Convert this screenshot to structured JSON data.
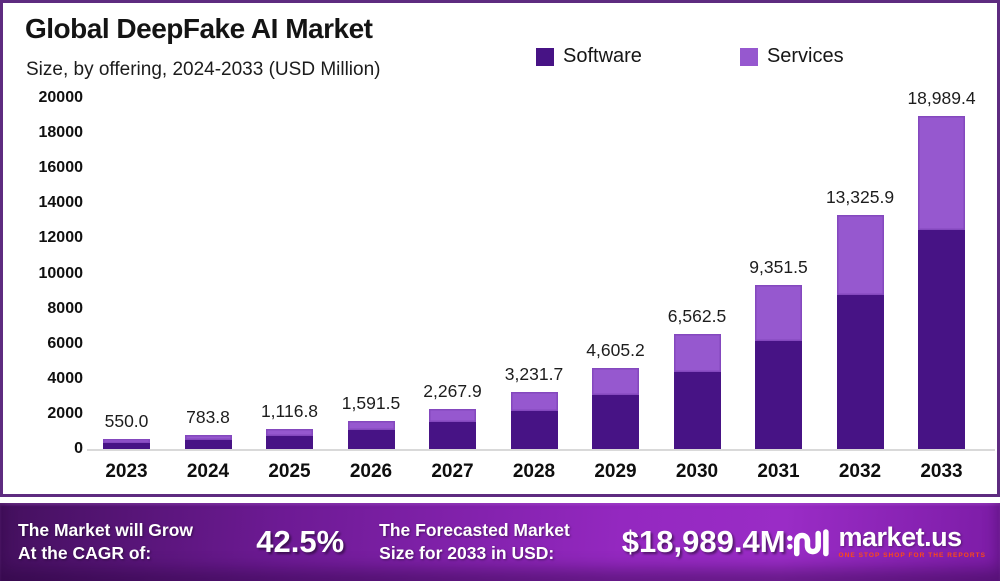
{
  "header": {
    "title": "Global DeepFake AI Market",
    "subtitle": "Size, by offering, 2024-2033 (USD Million)"
  },
  "colors": {
    "frame_border": "#5e2b80",
    "software": "#471385",
    "services": "#9658cf",
    "banner_purple": "#9428c0",
    "baseline_gray": "#d9d9d9"
  },
  "legend": [
    {
      "label": "Software",
      "color": "#471385"
    },
    {
      "label": "Services",
      "color": "#9658cf"
    }
  ],
  "chart_data": {
    "type": "bar",
    "stacked": true,
    "title": "Global DeepFake AI Market",
    "subtitle": "Size, by offering, 2024-2033 (USD Million)",
    "xlabel": "",
    "ylabel": "USD Million",
    "ylim": [
      0,
      20000
    ],
    "ytick_step": 2000,
    "grid": false,
    "legend_position": "top",
    "categories": [
      "2023",
      "2024",
      "2025",
      "2026",
      "2027",
      "2028",
      "2029",
      "2030",
      "2031",
      "2032",
      "2033"
    ],
    "series": [
      {
        "name": "Software",
        "color": "#471385",
        "values": [
          370.0,
          525.0,
          750.0,
          1080.0,
          1530.0,
          2180.0,
          3090.0,
          4370.0,
          6150.0,
          8800.0,
          12500.0
        ]
      },
      {
        "name": "Services",
        "color": "#9658cf",
        "values": [
          180.0,
          258.8,
          366.8,
          511.5,
          737.9,
          1051.7,
          1515.2,
          2192.5,
          3201.5,
          4525.9,
          6489.4
        ]
      }
    ],
    "totals": [
      550.0,
      783.8,
      1116.8,
      1591.5,
      2267.9,
      3231.7,
      4605.2,
      6562.5,
      9351.5,
      13325.9,
      18989.4
    ],
    "total_labels": [
      "550.0",
      "783.8",
      "1,116.8",
      "1,591.5",
      "2,267.9",
      "3,231.7",
      "4,605.2",
      "6,562.5",
      "9,351.5",
      "13,325.9",
      "18,989.4"
    ]
  },
  "footer": {
    "cagr_label_line1": "The Market will Grow",
    "cagr_label_line2": "At the CAGR of:",
    "cagr_value": "42.5%",
    "forecast_label_line1": "The Forecasted Market",
    "forecast_label_line2": "Size for 2033 in USD:",
    "forecast_value": "$18,989.4M",
    "logo_name": "market.us",
    "logo_tagline": "ONE STOP SHOP FOR THE REPORTS"
  }
}
